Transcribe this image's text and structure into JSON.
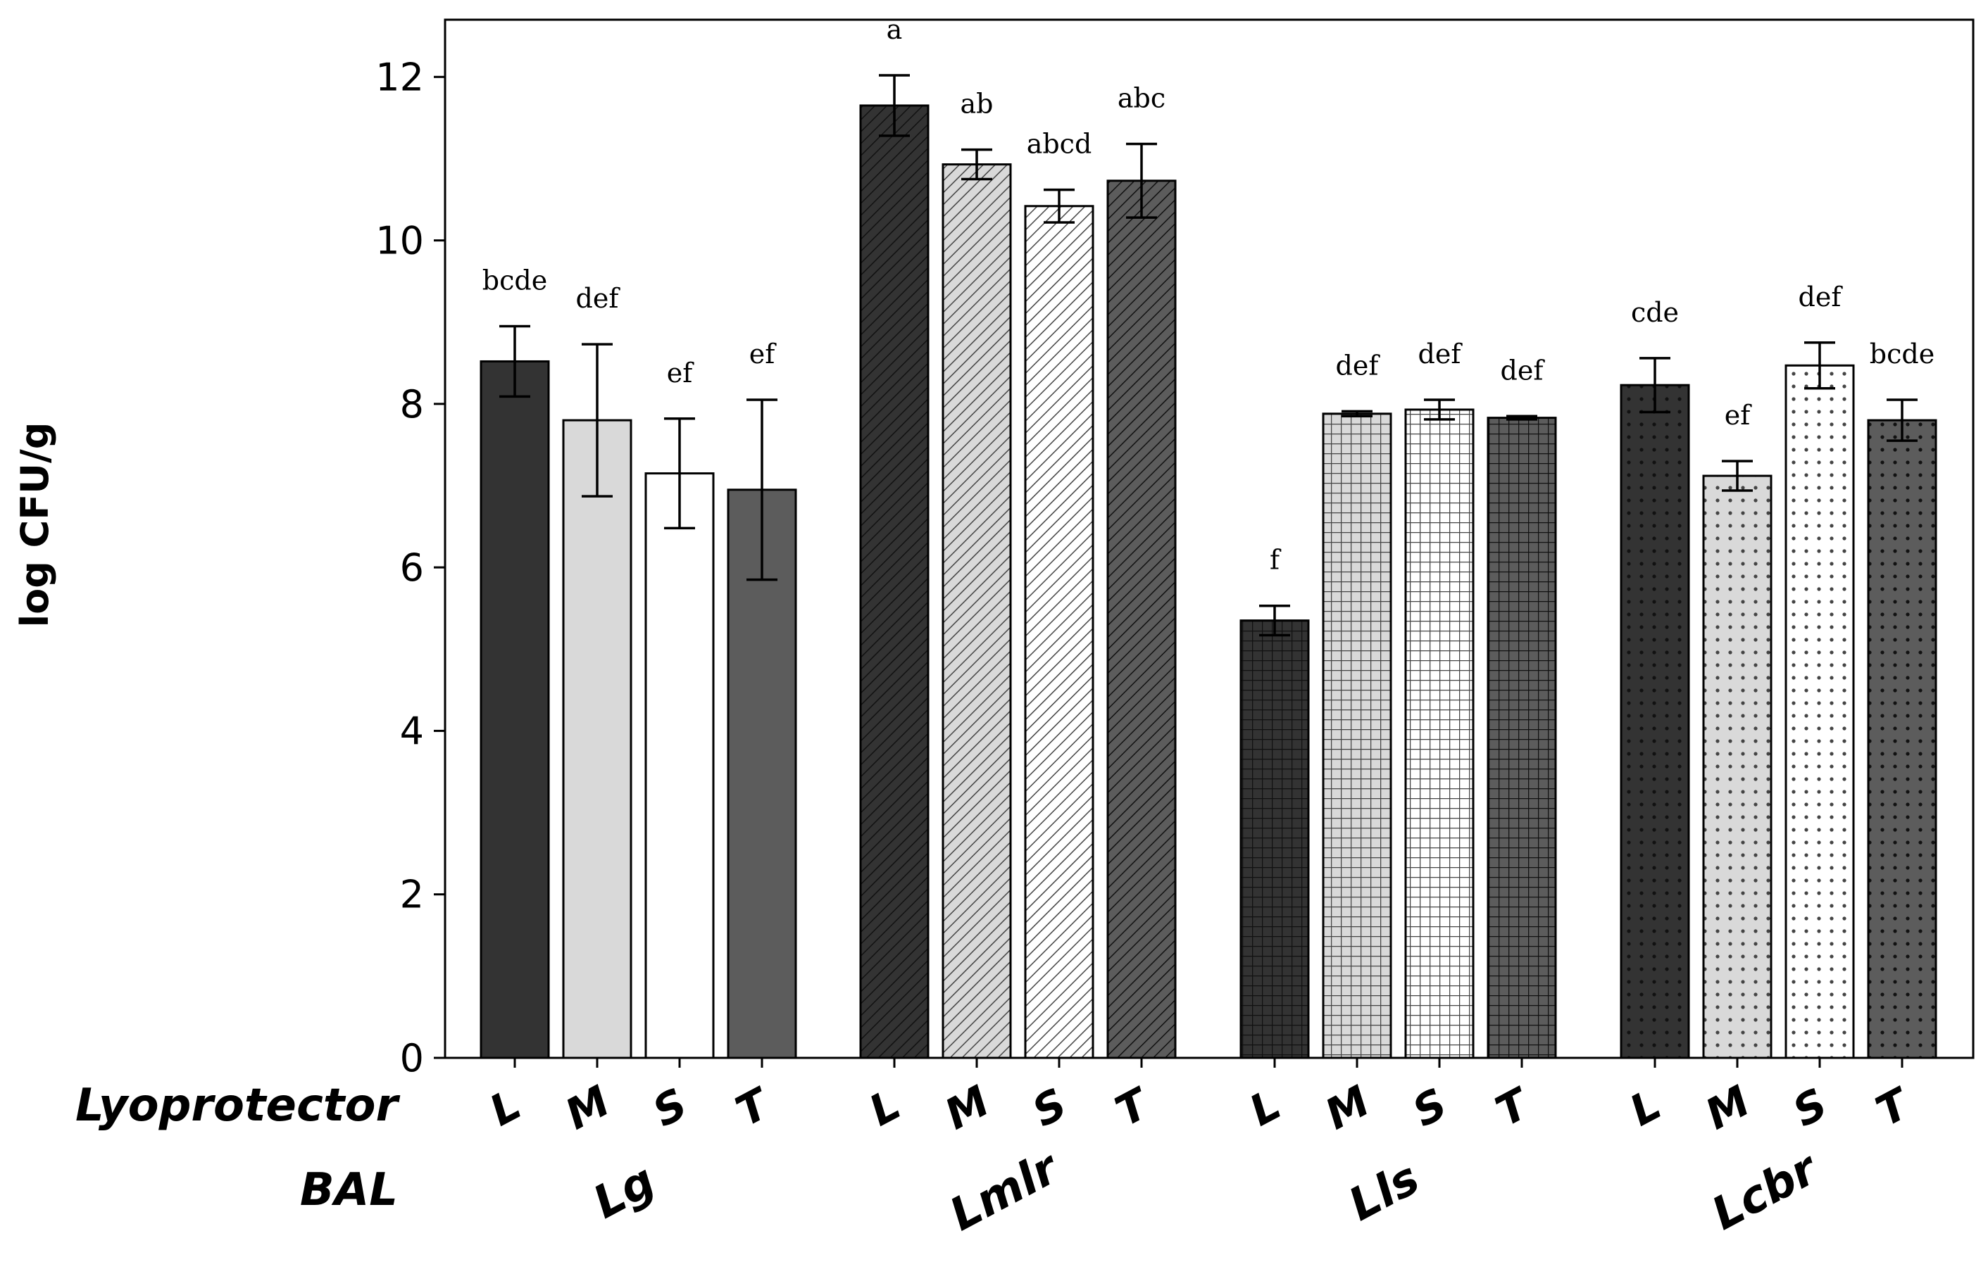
{
  "chart_data": {
    "type": "bar",
    "title": "",
    "xlabel": "",
    "ylabel": "log CFU/g",
    "ylim": [
      0,
      12.7
    ],
    "yticks": [
      0,
      2,
      4,
      6,
      8,
      10,
      12
    ],
    "grid": false,
    "row_labels": {
      "lyoprotector": "Lyoprotector",
      "bal": "BAL"
    },
    "groups": [
      {
        "name": "Lg",
        "bars": [
          {
            "lyoprotector": "L",
            "value": 8.52,
            "error": 0.43,
            "letters": "bcde",
            "fill": "#333333",
            "pattern": "solid"
          },
          {
            "lyoprotector": "M",
            "value": 7.8,
            "error": 0.93,
            "letters": "def",
            "fill": "#d9d9d9",
            "pattern": "solid"
          },
          {
            "lyoprotector": "S",
            "value": 7.15,
            "error": 0.67,
            "letters": "ef",
            "fill": "#ffffff",
            "pattern": "solid"
          },
          {
            "lyoprotector": "T",
            "value": 6.95,
            "error": 1.1,
            "letters": "ef",
            "fill": "#5c5c5c",
            "pattern": "solid"
          }
        ]
      },
      {
        "name": "Lmlr",
        "bars": [
          {
            "lyoprotector": "L",
            "value": 11.65,
            "error": 0.37,
            "letters": "a",
            "fill": "#333333",
            "pattern": "diag-back"
          },
          {
            "lyoprotector": "M",
            "value": 10.93,
            "error": 0.18,
            "letters": "ab",
            "fill": "#d9d9d9",
            "pattern": "diag-back"
          },
          {
            "lyoprotector": "S",
            "value": 10.42,
            "error": 0.2,
            "letters": "abcd",
            "fill": "#ffffff",
            "pattern": "diag-back"
          },
          {
            "lyoprotector": "T",
            "value": 10.73,
            "error": 0.45,
            "letters": "abc",
            "fill": "#5c5c5c",
            "pattern": "diag-back"
          }
        ]
      },
      {
        "name": "Lls",
        "bars": [
          {
            "lyoprotector": "L",
            "value": 5.35,
            "error": 0.18,
            "letters": "f",
            "fill": "#333333",
            "pattern": "grid"
          },
          {
            "lyoprotector": "M",
            "value": 7.88,
            "error": 0.03,
            "letters": "def",
            "fill": "#d9d9d9",
            "pattern": "grid"
          },
          {
            "lyoprotector": "S",
            "value": 7.93,
            "error": 0.12,
            "letters": "def",
            "fill": "#ffffff",
            "pattern": "grid"
          },
          {
            "lyoprotector": "T",
            "value": 7.83,
            "error": 0.02,
            "letters": "def",
            "fill": "#5c5c5c",
            "pattern": "grid"
          }
        ]
      },
      {
        "name": "Lcbr",
        "bars": [
          {
            "lyoprotector": "L",
            "value": 8.23,
            "error": 0.33,
            "letters": "cde",
            "fill": "#333333",
            "pattern": "dots"
          },
          {
            "lyoprotector": "M",
            "value": 7.12,
            "error": 0.18,
            "letters": "ef",
            "fill": "#d9d9d9",
            "pattern": "dots"
          },
          {
            "lyoprotector": "S",
            "value": 8.47,
            "error": 0.28,
            "letters": "def",
            "fill": "#ffffff",
            "pattern": "dots"
          },
          {
            "lyoprotector": "T",
            "value": 7.8,
            "error": 0.25,
            "letters": "bcde",
            "fill": "#5c5c5c",
            "pattern": "dots"
          }
        ]
      }
    ]
  }
}
